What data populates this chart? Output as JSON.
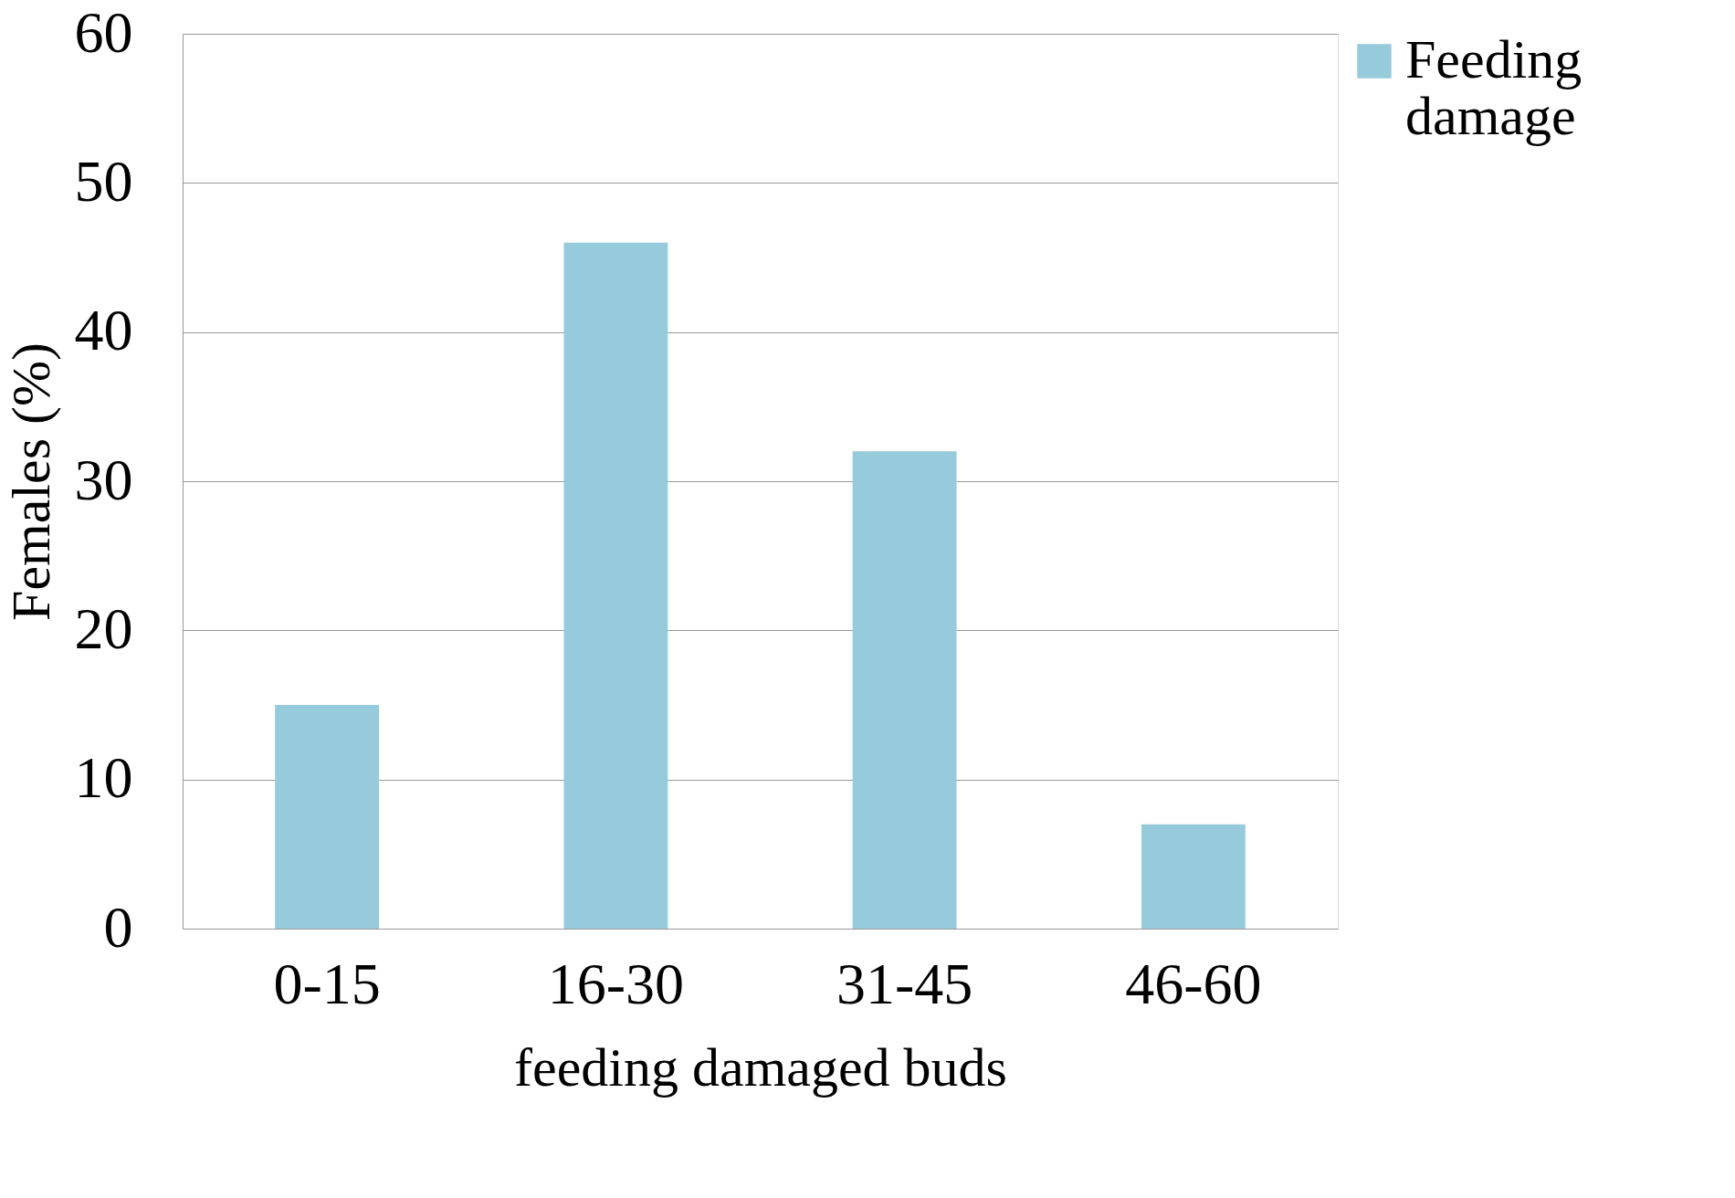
{
  "chart_data": {
    "type": "bar",
    "xlabel": "feeding damaged buds",
    "ylabel": "Females (%)",
    "categories": [
      "0-15",
      "16-30",
      "31-45",
      "46-60"
    ],
    "series": [
      {
        "name": "Feeding damage",
        "color": "#96cbdb",
        "values": [
          15,
          46,
          32,
          7
        ]
      }
    ],
    "ylim": [
      0,
      60
    ],
    "yticks": [
      0,
      10,
      20,
      30,
      40,
      50,
      60
    ],
    "grid": "y",
    "legend": "right"
  }
}
